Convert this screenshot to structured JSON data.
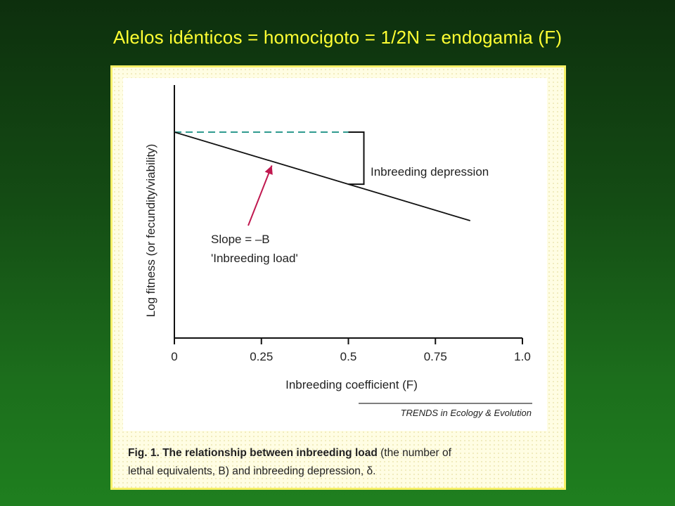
{
  "slide": {
    "title": "Alelos idénticos = homocigoto = 1/2N = endogamia (F)"
  },
  "colors": {
    "background": "#145a14",
    "title_text": "#ffff33",
    "frame_border": "#f6f066",
    "figure_bg": "#fffde3",
    "plot_bg": "#ffffff",
    "fitness_line": "#111111",
    "reference_line": "#2f9a8f",
    "annotation_arrow": "#c0184f"
  },
  "chart_data": {
    "type": "line",
    "xlabel": "Inbreeding coefficient (F)",
    "ylabel": "Log fitness (or fecundity/viability)",
    "xlim": [
      0,
      1.0
    ],
    "x_ticks": [
      "0",
      "0.25",
      "0.5",
      "0.75",
      "1.0"
    ],
    "series": [
      {
        "x": [
          0,
          0.85
        ],
        "y": [
          1.0,
          0.35
        ]
      }
    ],
    "reference_line": {
      "x": [
        0,
        0.5
      ],
      "y": 1.0,
      "style": "dashed"
    },
    "annotations": {
      "bracket_label": "Inbreeding depression",
      "slope_label_line1": "Slope = –B",
      "slope_label_line2": "'Inbreeding load'"
    },
    "source": "TRENDS in Ecology & Evolution",
    "caption_bold": "Fig. 1. The relationship between inbreeding load",
    "caption_line1_rest": " (the number of",
    "caption_line2": "lethal equivalents, B) and inbreeding depression, δ."
  }
}
